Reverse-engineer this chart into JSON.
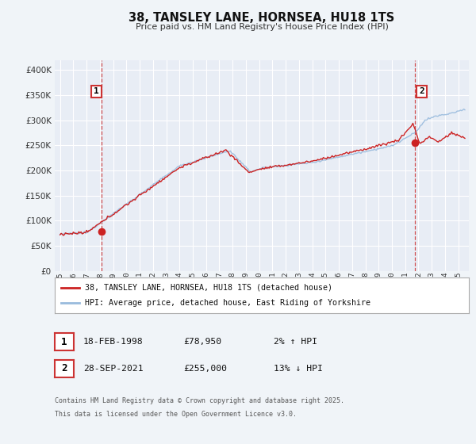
{
  "title": "38, TANSLEY LANE, HORNSEA, HU18 1TS",
  "subtitle": "Price paid vs. HM Land Registry's House Price Index (HPI)",
  "bg_color": "#f0f4f8",
  "plot_bg_color": "#e8edf5",
  "grid_color": "#ffffff",
  "red_line_color": "#cc2222",
  "blue_line_color": "#99bbdd",
  "marker1_date": 1998.13,
  "marker1_value": 78950,
  "marker2_date": 2021.74,
  "marker2_value": 255000,
  "vline_color": "#cc3333",
  "ylim": [
    0,
    420000
  ],
  "xlim": [
    1994.6,
    2025.8
  ],
  "yticks": [
    0,
    50000,
    100000,
    150000,
    200000,
    250000,
    300000,
    350000,
    400000
  ],
  "ytick_labels": [
    "£0",
    "£50K",
    "£100K",
    "£150K",
    "£200K",
    "£250K",
    "£300K",
    "£350K",
    "£400K"
  ],
  "xticks": [
    1995,
    1996,
    1997,
    1998,
    1999,
    2000,
    2001,
    2002,
    2003,
    2004,
    2005,
    2006,
    2007,
    2008,
    2009,
    2010,
    2011,
    2012,
    2013,
    2014,
    2015,
    2016,
    2017,
    2018,
    2019,
    2020,
    2021,
    2022,
    2023,
    2024,
    2025
  ],
  "legend_red_label": "38, TANSLEY LANE, HORNSEA, HU18 1TS (detached house)",
  "legend_blue_label": "HPI: Average price, detached house, East Riding of Yorkshire",
  "annotation1_date": "18-FEB-1998",
  "annotation1_price": "£78,950",
  "annotation1_hpi": "2% ↑ HPI",
  "annotation2_date": "28-SEP-2021",
  "annotation2_price": "£255,000",
  "annotation2_hpi": "13% ↓ HPI",
  "footer_line1": "Contains HM Land Registry data © Crown copyright and database right 2025.",
  "footer_line2": "This data is licensed under the Open Government Licence v3.0."
}
